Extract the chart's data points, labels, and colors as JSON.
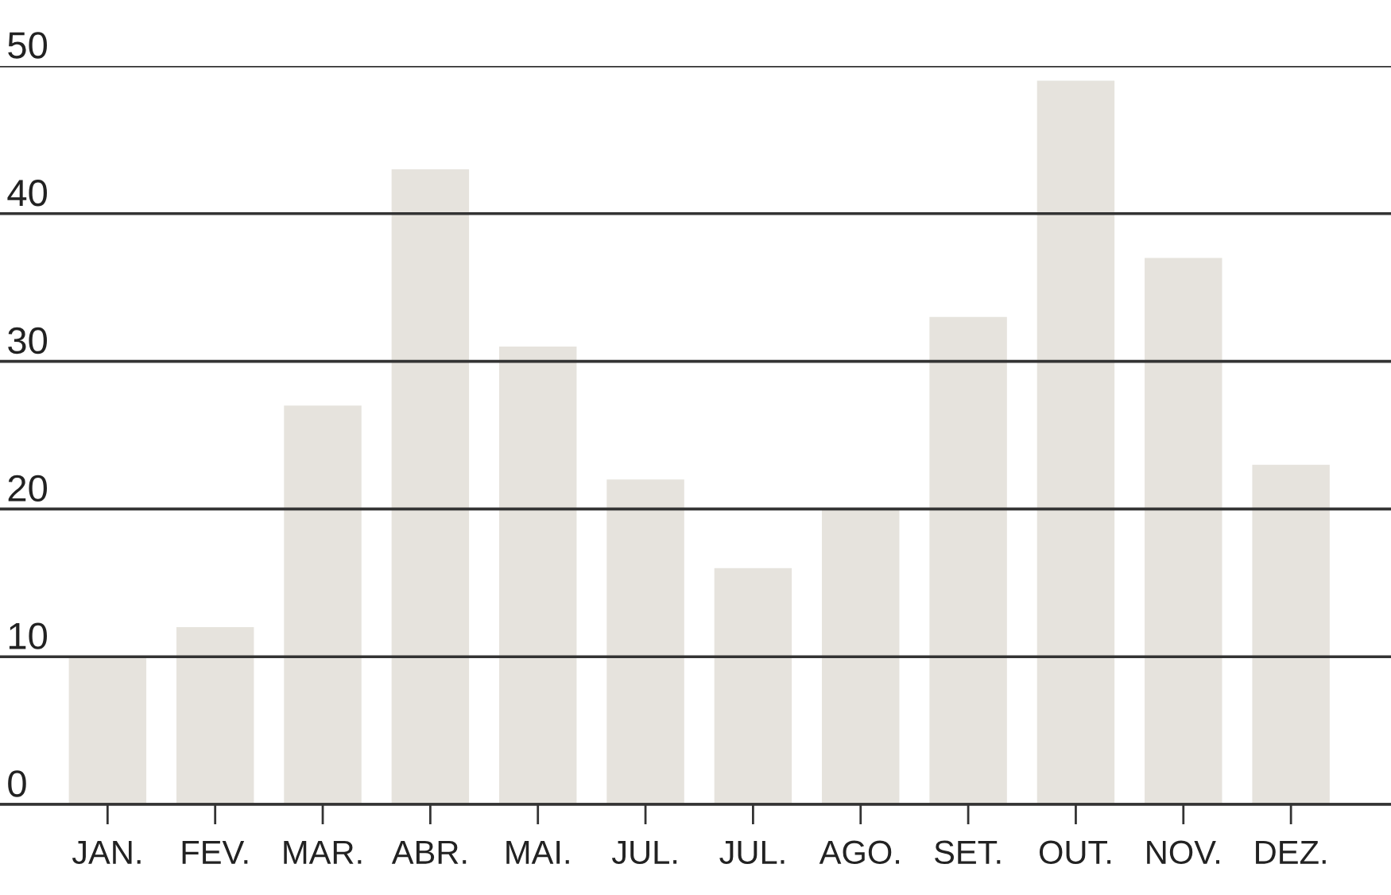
{
  "chart_data": {
    "type": "bar",
    "categories": [
      "JAN.",
      "FEV.",
      "MAR.",
      "ABR.",
      "MAI.",
      "JUL.",
      "JUL.",
      "AGO.",
      "SET.",
      "OUT.",
      "NOV.",
      "DEZ."
    ],
    "values": [
      10,
      12,
      27,
      43,
      31,
      22,
      16,
      20,
      33,
      49,
      37,
      23
    ],
    "color": "#e6e3dd",
    "ylim": [
      0,
      50
    ],
    "yticks": [
      0,
      10,
      20,
      30,
      40,
      50
    ],
    "grid": "y"
  }
}
